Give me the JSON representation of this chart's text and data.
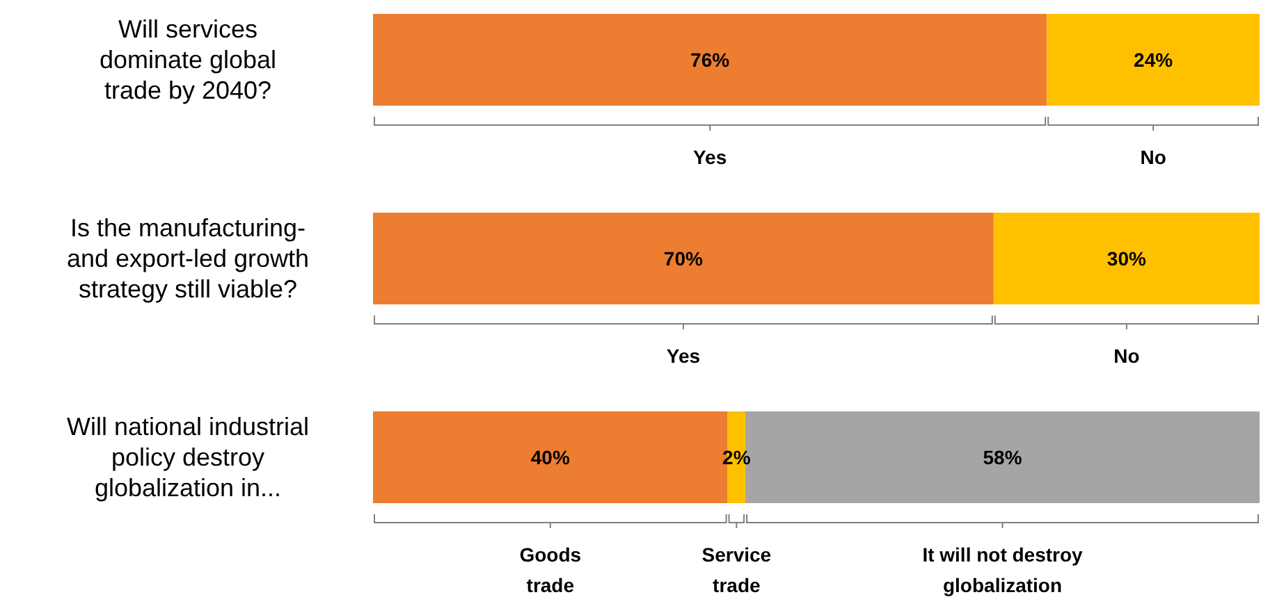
{
  "chart_data": {
    "type": "bar",
    "orientation": "horizontal",
    "stacked": true,
    "xlim": [
      0,
      100
    ],
    "tick_labels": "y",
    "grid": false,
    "categories": [
      "Will services dominate global trade by 2040?",
      "Is the manufacturing- and export-led growth strategy still viable?",
      "Will national industrial policy destroy globalization in..."
    ],
    "series": [
      {
        "color": "#ed7d31",
        "values": [
          76,
          70,
          40
        ],
        "value_labels": [
          "76%",
          "70%",
          "40%"
        ]
      },
      {
        "color": "#ffc000",
        "values": [
          24,
          30,
          2
        ],
        "value_labels": [
          "24%",
          "30%",
          "2%"
        ]
      },
      {
        "color": "#a5a5a5",
        "values": [
          null,
          null,
          58
        ],
        "value_labels": [
          null,
          null,
          "58%"
        ]
      }
    ],
    "annotations": [
      "Yes",
      "No",
      "Yes",
      "No",
      "Goods trade",
      "Service trade",
      "It will not destroy globalization"
    ]
  }
}
